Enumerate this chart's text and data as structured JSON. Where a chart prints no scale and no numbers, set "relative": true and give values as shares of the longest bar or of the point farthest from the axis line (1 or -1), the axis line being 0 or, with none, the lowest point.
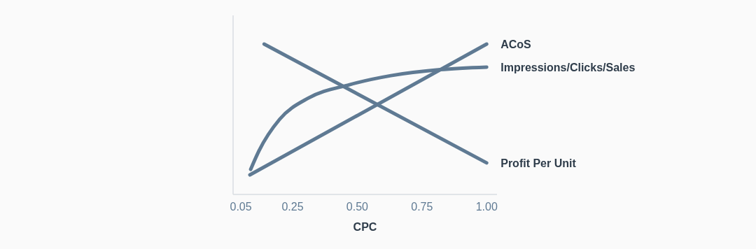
{
  "chart_data": {
    "type": "line",
    "xlabel": "CPC",
    "relative": true,
    "legend": false,
    "xlim": [
      0.02,
      1.04
    ],
    "xticks": [
      {
        "value": 0.05,
        "label": "0.05"
      },
      {
        "value": 0.25,
        "label": "0.25"
      },
      {
        "value": 0.5,
        "label": "0.50"
      },
      {
        "value": 0.75,
        "label": "0.75"
      },
      {
        "value": 1.0,
        "label": "1.00"
      }
    ],
    "series": [
      {
        "name": "ACoS",
        "color": "#5f7a93",
        "x": [
          0.085,
          1.0
        ],
        "values": [
          0.13,
          1.0
        ]
      },
      {
        "name": "Impressions/Clicks/Sales",
        "color": "#5f7a93",
        "x": [
          0.088,
          0.12,
          0.2,
          0.31,
          0.47,
          0.63,
          0.82,
          1.0
        ],
        "values": [
          0.167,
          0.29,
          0.5,
          0.64,
          0.73,
          0.79,
          0.83,
          0.847
        ]
      },
      {
        "name": "Profit Per Unit",
        "color": "#5f7a93",
        "x": [
          0.14,
          1.0
        ],
        "values": [
          1.0,
          0.21
        ]
      }
    ]
  }
}
